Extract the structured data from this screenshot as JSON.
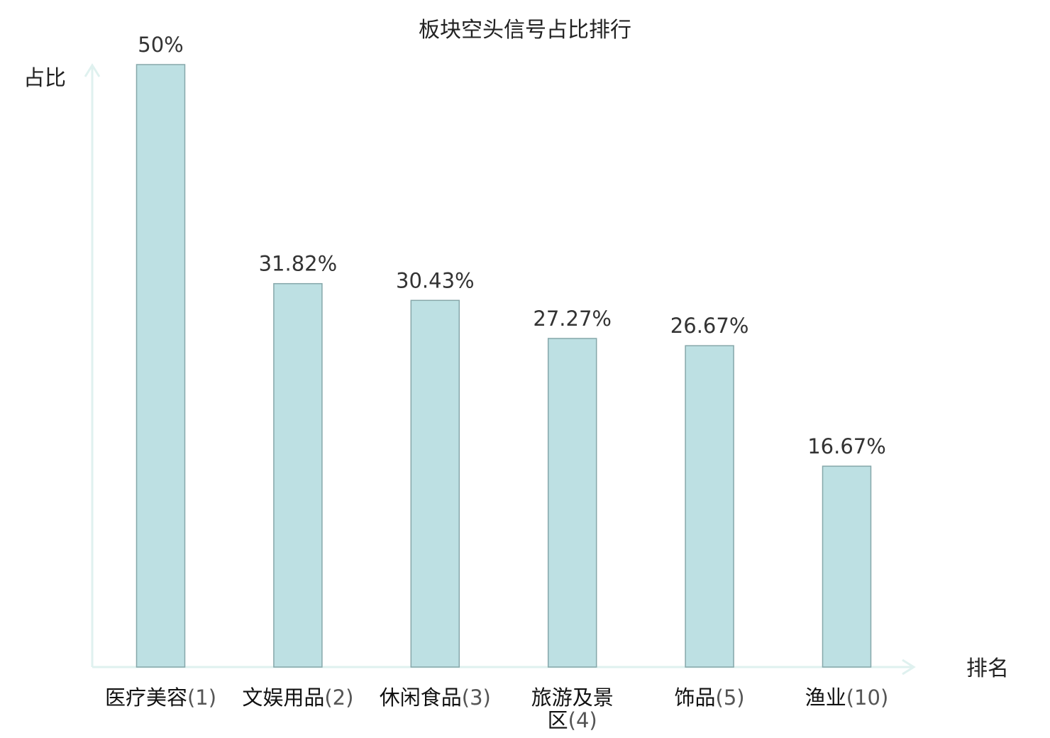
{
  "chart_data": {
    "type": "bar",
    "title": "板块空头信号占比排行",
    "xlabel": "排名",
    "ylabel": "占比",
    "ylim": [
      0,
      50
    ],
    "grid": false,
    "categories": [
      {
        "name": "医疗美容",
        "rank": "(1)",
        "highlight": false
      },
      {
        "name": "文娱用品",
        "rank": "(2)",
        "highlight": false
      },
      {
        "name": "休闲食品",
        "rank": "(3)",
        "highlight": false
      },
      {
        "name": "旅游及景区",
        "rank": "(4)",
        "highlight": false
      },
      {
        "name": "饰品",
        "rank": "(5)",
        "highlight": false
      },
      {
        "name": "渔业",
        "rank": "(10)",
        "highlight": true
      }
    ],
    "values": [
      50,
      31.82,
      30.43,
      27.27,
      26.67,
      16.67
    ],
    "value_labels": [
      "50%",
      "31.82%",
      "30.43%",
      "27.27%",
      "26.67%",
      "16.67%"
    ]
  },
  "colors": {
    "bar_fill": "#bde0e3",
    "bar_stroke": "#86a7aa",
    "axis": "#dff1ef",
    "highlight_text": "#e01818"
  }
}
